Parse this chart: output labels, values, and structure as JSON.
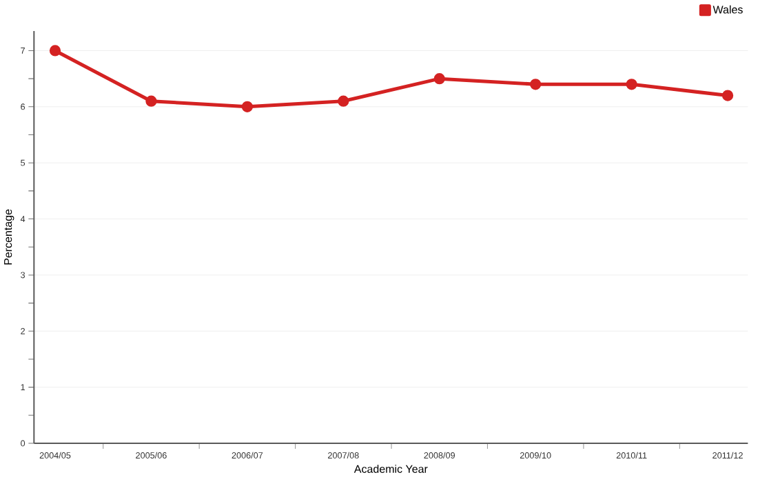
{
  "chart_data": {
    "type": "line",
    "xlabel": "Academic Year",
    "ylabel": "Percentage",
    "categories": [
      "2004/05",
      "2005/06",
      "2006/07",
      "2007/08",
      "2008/09",
      "2009/10",
      "2010/11",
      "2011/12"
    ],
    "series": [
      {
        "name": "Wales",
        "color": "#d42222",
        "values": [
          7.0,
          6.1,
          6.0,
          6.1,
          6.5,
          6.4,
          6.4,
          6.2
        ]
      }
    ],
    "ylim": [
      0,
      7.35
    ],
    "yticks": [
      0,
      1,
      2,
      3,
      4,
      5,
      6,
      7
    ],
    "grid": "y",
    "legend": "top right",
    "marker": "circle",
    "line_style": "solid"
  }
}
